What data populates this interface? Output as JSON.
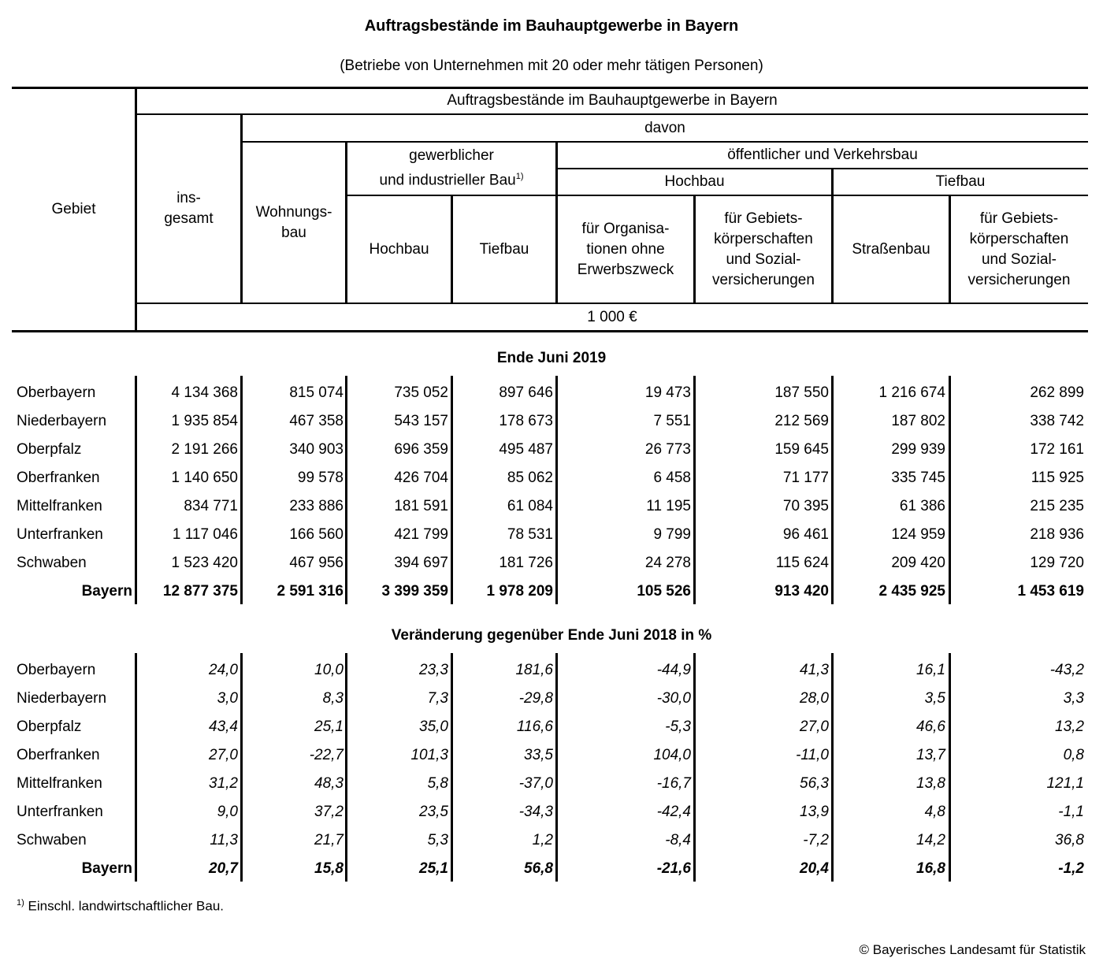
{
  "title": "Auftragsbestände im Bauhauptgewerbe in Bayern",
  "subtitle": "(Betriebe von Unternehmen mit 20 oder mehr tätigen Personen)",
  "header": {
    "gebiet": "Gebiet",
    "top": "Auftragsbestände im Bauhauptgewerbe in Bayern",
    "davon": "davon",
    "insgesamt": "ins-\ngesamt",
    "wohnungsbau": "Wohnungs-\nbau",
    "gewerblich": "gewerblicher\nund industrieller Bau",
    "gewerblich_footnote": "1)",
    "oeffentlich": "öffentlicher und Verkehrsbau",
    "hochbau_group": "Hochbau",
    "tiefbau_group": "Tiefbau",
    "gew_hochbau": "Hochbau",
    "gew_tiefbau": "Tiefbau",
    "organisationen": "für Organisa-\ntionen ohne\nErwerbszweck",
    "gebietskoerperschaften_hoch": "für Gebiets-\nkörperschaften\nund Sozial-\nversicherungen",
    "strassenbau": "Straßenbau",
    "gebietskoerperschaften_tief": "für Gebiets-\nkörperschaften\nund Sozial-\nversicherungen",
    "unit": "1 000 €"
  },
  "sections": [
    {
      "title": "Ende Juni 2019",
      "style": "absolute",
      "rows": [
        {
          "label": "Oberbayern",
          "values": [
            "4 134 368",
            "815 074",
            "735 052",
            "897 646",
            "19 473",
            "187 550",
            "1 216 674",
            "262 899"
          ]
        },
        {
          "label": "Niederbayern",
          "values": [
            "1 935 854",
            "467 358",
            "543 157",
            "178 673",
            "7 551",
            "212 569",
            "187 802",
            "338 742"
          ]
        },
        {
          "label": "Oberpfalz",
          "values": [
            "2 191 266",
            "340 903",
            "696 359",
            "495 487",
            "26 773",
            "159 645",
            "299 939",
            "172 161"
          ]
        },
        {
          "label": "Oberfranken",
          "values": [
            "1 140 650",
            "99 578",
            "426 704",
            "85 062",
            "6 458",
            "71 177",
            "335 745",
            "115 925"
          ]
        },
        {
          "label": "Mittelfranken",
          "values": [
            "834 771",
            "233 886",
            "181 591",
            "61 084",
            "11 195",
            "70 395",
            "61 386",
            "215 235"
          ]
        },
        {
          "label": "Unterfranken",
          "values": [
            "1 117 046",
            "166 560",
            "421 799",
            "78 531",
            "9 799",
            "96 461",
            "124 959",
            "218 936"
          ]
        },
        {
          "label": "Schwaben",
          "values": [
            "1 523 420",
            "467 956",
            "394 697",
            "181 726",
            "24 278",
            "115 624",
            "209 420",
            "129 720"
          ]
        },
        {
          "label": "Bayern",
          "total": true,
          "values": [
            "12 877 375",
            "2 591 316",
            "3 399 359",
            "1 978 209",
            "105 526",
            "913 420",
            "2 435 925",
            "1 453 619"
          ]
        }
      ]
    },
    {
      "title": "Veränderung gegenüber Ende Juni 2018 in %",
      "style": "percent",
      "rows": [
        {
          "label": "Oberbayern",
          "values": [
            "24,0",
            "10,0",
            "23,3",
            "181,6",
            "-44,9",
            "41,3",
            "16,1",
            "-43,2"
          ]
        },
        {
          "label": "Niederbayern",
          "values": [
            "3,0",
            "8,3",
            "7,3",
            "-29,8",
            "-30,0",
            "28,0",
            "3,5",
            "3,3"
          ]
        },
        {
          "label": "Oberpfalz",
          "values": [
            "43,4",
            "25,1",
            "35,0",
            "116,6",
            "-5,3",
            "27,0",
            "46,6",
            "13,2"
          ]
        },
        {
          "label": "Oberfranken",
          "values": [
            "27,0",
            "-22,7",
            "101,3",
            "33,5",
            "104,0",
            "-11,0",
            "13,7",
            "0,8"
          ]
        },
        {
          "label": "Mittelfranken",
          "values": [
            "31,2",
            "48,3",
            "5,8",
            "-37,0",
            "-16,7",
            "56,3",
            "13,8",
            "121,1"
          ]
        },
        {
          "label": "Unterfranken",
          "values": [
            "9,0",
            "37,2",
            "23,5",
            "-34,3",
            "-42,4",
            "13,9",
            "4,8",
            "-1,1"
          ]
        },
        {
          "label": "Schwaben",
          "values": [
            "11,3",
            "21,7",
            "5,3",
            "1,2",
            "-8,4",
            "-7,2",
            "14,2",
            "36,8"
          ]
        },
        {
          "label": "Bayern",
          "total": true,
          "values": [
            "20,7",
            "15,8",
            "25,1",
            "56,8",
            "-21,6",
            "20,4",
            "16,8",
            "-1,2"
          ]
        }
      ]
    }
  ],
  "footnote": {
    "marker": "1)",
    "text": "Einschl. landwirtschaftlicher Bau."
  },
  "copyright": "© Bayerisches Landesamt für Statistik"
}
